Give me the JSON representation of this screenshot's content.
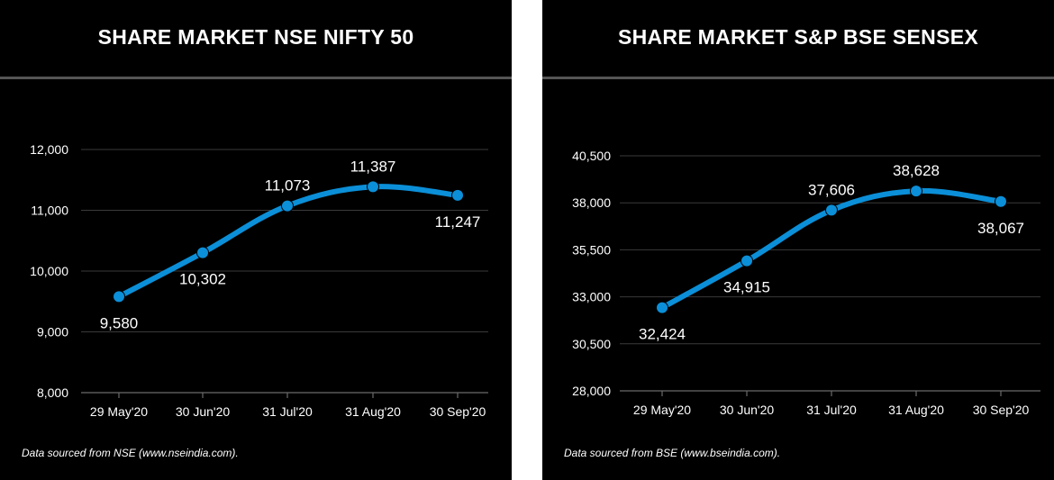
{
  "chart_data": [
    {
      "type": "line",
      "title": "SHARE MARKET NSE NIFTY 50",
      "categories": [
        "29 May'20",
        "30 Jun'20",
        "31 Jul'20",
        "31 Aug'20",
        "30 Sep'20"
      ],
      "series": [
        {
          "values": [
            9580,
            10302,
            11073,
            11387,
            11247
          ]
        }
      ],
      "data_labels": [
        "9,580",
        "10,302",
        "11,073",
        "11,387",
        "11,247"
      ],
      "yticks": [
        8000,
        9000,
        10000,
        11000,
        12000
      ],
      "ytick_labels": [
        "8,000",
        "9,000",
        "10,000",
        "11,000",
        "12,000"
      ],
      "ylim": [
        8000,
        12000
      ],
      "grid": true,
      "line_color": "#0b8fd8",
      "footnote": "Data sourced from NSE (www.nseindia.com)."
    },
    {
      "type": "line",
      "title": "SHARE MARKET S&P BSE SENSEX",
      "categories": [
        "29 May'20",
        "30 Jun'20",
        "31 Jul'20",
        "31 Aug'20",
        "30 Sep'20"
      ],
      "series": [
        {
          "values": [
            32424,
            34915,
            37606,
            38628,
            38067
          ]
        }
      ],
      "data_labels": [
        "32,424",
        "34,915",
        "37,606",
        "38,628",
        "38,067"
      ],
      "yticks": [
        28000,
        30500,
        33000,
        35500,
        38000,
        40500
      ],
      "ytick_labels": [
        "28,000",
        "30,500",
        "33,000",
        "35,500",
        "38,000",
        "40,500"
      ],
      "ylim": [
        28000,
        40500
      ],
      "grid": true,
      "line_color": "#0b8fd8",
      "footnote": "Data sourced from BSE (www.bseindia.com)."
    }
  ]
}
